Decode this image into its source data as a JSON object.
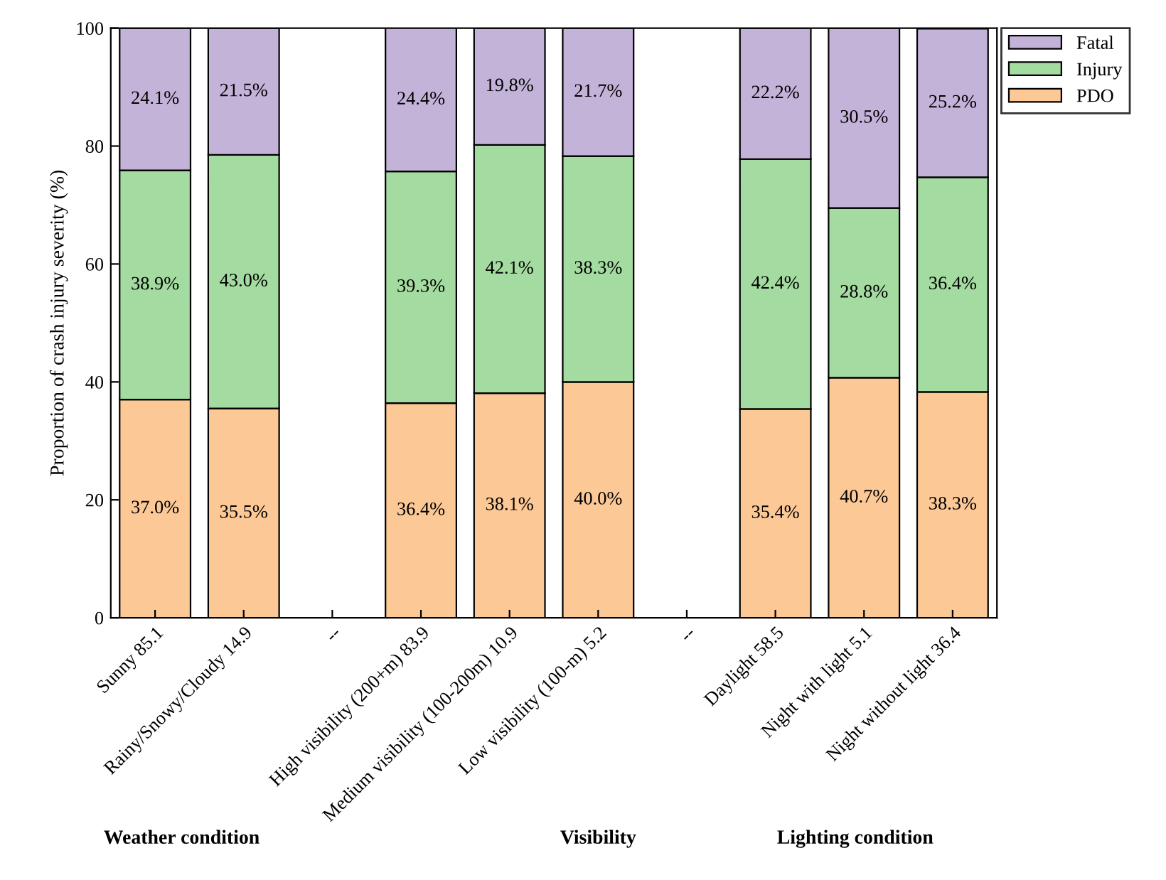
{
  "chart_data": {
    "type": "bar",
    "stacked": true,
    "ylabel": "Proportion of crash injury severity (%)",
    "categories": [
      "Sunny 85.1",
      "Rainy/Snowy/Cloudy 14.9",
      "--",
      "High visibility (200+m) 83.9",
      "Medium visibility (100-200m) 10.9",
      "Low visibility (100-m) 5.2",
      "--",
      "Daylight 58.5",
      "Night with light 5.1",
      "Night without light 36.4"
    ],
    "series": [
      {
        "name": "PDO",
        "color": "#fbc896",
        "values": [
          37.0,
          35.5,
          null,
          36.4,
          38.1,
          40.0,
          null,
          35.4,
          40.7,
          38.3
        ],
        "value_labels": [
          "37.0%",
          "35.5%",
          null,
          "36.4%",
          "38.1%",
          "40.0%",
          null,
          "35.4%",
          "40.7%",
          "38.3%"
        ]
      },
      {
        "name": "Injury",
        "color": "#a4dba0",
        "values": [
          38.9,
          43.0,
          null,
          39.3,
          42.1,
          38.3,
          null,
          42.4,
          28.8,
          36.4
        ],
        "value_labels": [
          "38.9%",
          "43.0%",
          null,
          "39.3%",
          "42.1%",
          "38.3%",
          null,
          "42.4%",
          "28.8%",
          "36.4%"
        ]
      },
      {
        "name": "Fatal",
        "color": "#c3b3d9",
        "values": [
          24.1,
          21.5,
          null,
          24.4,
          19.8,
          21.7,
          null,
          22.2,
          30.5,
          25.2
        ],
        "value_labels": [
          "24.1%",
          "21.5%",
          null,
          "24.4%",
          "19.8%",
          "21.7%",
          null,
          "22.2%",
          "30.5%",
          "25.2%"
        ]
      }
    ],
    "ylim": [
      0,
      100
    ],
    "yticks": [
      0,
      20,
      40,
      60,
      80,
      100
    ],
    "grid": false,
    "legend": "top right",
    "annotations": [
      "Weather condition",
      "Visibility",
      "Lighting condition"
    ]
  }
}
